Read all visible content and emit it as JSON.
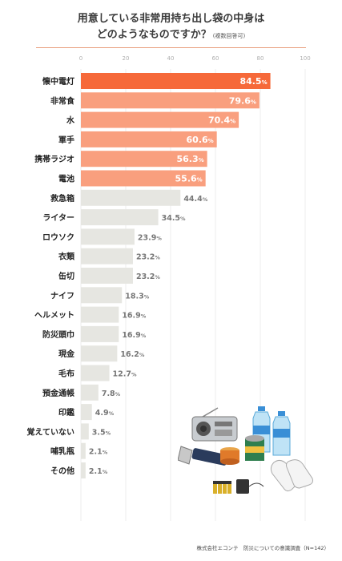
{
  "title": {
    "line1": "用意している非常用持ち出し袋の中身は",
    "line2": "どのようなものですか？",
    "note": "(複数回答可)"
  },
  "source": "株式会社エコンテ　防災についての意識調査（N=142）",
  "colors": {
    "top": "#f6693a",
    "highlight": "#f99f7e",
    "other": "#e6e6e1",
    "value_light": "#ffffff",
    "value_dark": "#777777",
    "label": "#222222",
    "tick": "#b0b0b0",
    "grid": "#ececec"
  },
  "chart_data": {
    "type": "bar",
    "orientation": "horizontal",
    "xlim": [
      0,
      100
    ],
    "xticks": [
      0,
      20,
      40,
      60,
      80,
      100
    ],
    "value_suffix": "%",
    "grid": true,
    "categories": [
      "懐中電灯",
      "非常食",
      "水",
      "軍手",
      "携帯ラジオ",
      "電池",
      "救急箱",
      "ライター",
      "ロウソク",
      "衣類",
      "缶切",
      "ナイフ",
      "ヘルメット",
      "防災頭巾",
      "現金",
      "毛布",
      "預金通帳",
      "印鑑",
      "覚えていない",
      "哺乳瓶",
      "その他"
    ],
    "values": [
      84.5,
      79.6,
      70.4,
      60.6,
      56.3,
      55.6,
      44.4,
      34.5,
      23.9,
      23.2,
      23.2,
      18.3,
      16.9,
      16.9,
      16.2,
      12.7,
      7.8,
      4.9,
      3.5,
      2.1,
      2.1
    ],
    "highlight_count": 6
  }
}
